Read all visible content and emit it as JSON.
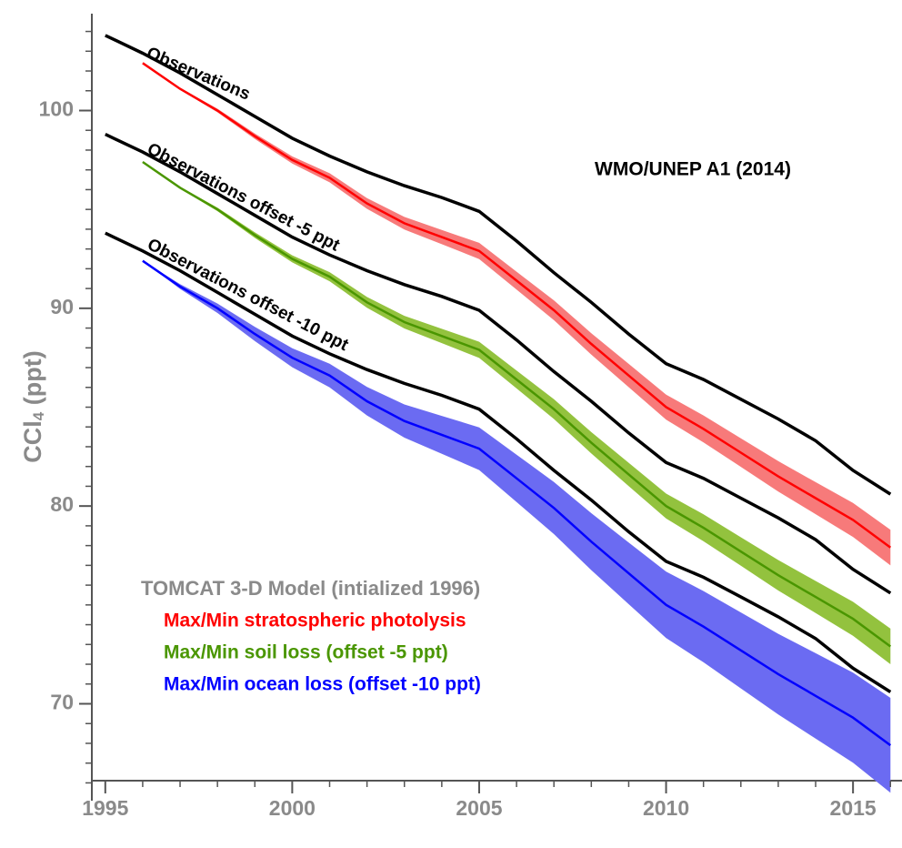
{
  "chart_data": {
    "type": "line",
    "annotation": "WMO/UNEP A1 (2014)",
    "y_label": {
      "main": "CCl",
      "sub": "4",
      "rest": " (ppt)"
    },
    "legend_title": "TOMCAT 3-D Model (intialized 1996)",
    "xlim": [
      1994.64,
      2016.31
    ],
    "ylim": [
      65.1,
      104.9
    ],
    "xticks": [
      1995,
      2000,
      2005,
      2010,
      2015
    ],
    "yticks": [
      70,
      80,
      90,
      100
    ],
    "xminorticks": [
      1996,
      1997,
      1998,
      1999,
      2001,
      2002,
      2003,
      2004,
      2006,
      2007,
      2008,
      2009,
      2011,
      2012,
      2013,
      2014,
      2016
    ],
    "yminorticks": [
      66,
      67,
      68,
      69,
      71,
      72,
      73,
      74,
      75,
      76,
      77,
      78,
      79,
      81,
      82,
      83,
      84,
      85,
      86,
      87,
      88,
      89,
      91,
      92,
      93,
      94,
      95,
      96,
      97,
      98,
      99,
      101,
      102,
      103,
      104
    ],
    "observations": [
      {
        "label": "Observations",
        "color": "#000000",
        "x": [
          1995,
          1996,
          1997,
          1998,
          1999,
          2000,
          2001,
          2002,
          2003,
          2004,
          2005,
          2006,
          2007,
          2008,
          2009,
          2010,
          2011,
          2012,
          2013,
          2014,
          2015,
          2016
        ],
        "values": [
          103.8,
          102.9,
          101.9,
          100.8,
          99.7,
          98.6,
          97.7,
          96.9,
          96.2,
          95.6,
          94.9,
          93.4,
          91.8,
          90.3,
          88.7,
          87.2,
          86.4,
          85.4,
          84.4,
          83.3,
          81.8,
          80.6
        ]
      },
      {
        "label": "Observations offset -5 ppt",
        "color": "#000000",
        "x": [
          1995,
          1996,
          1997,
          1998,
          1999,
          2000,
          2001,
          2002,
          2003,
          2004,
          2005,
          2006,
          2007,
          2008,
          2009,
          2010,
          2011,
          2012,
          2013,
          2014,
          2015,
          2016
        ],
        "values": [
          98.8,
          97.9,
          96.9,
          95.8,
          94.7,
          93.6,
          92.7,
          91.9,
          91.2,
          90.6,
          89.9,
          88.4,
          86.8,
          85.3,
          83.7,
          82.2,
          81.4,
          80.4,
          79.4,
          78.3,
          76.8,
          75.6
        ]
      },
      {
        "label": "Observations offset -10 ppt",
        "color": "#000000",
        "x": [
          1995,
          1996,
          1997,
          1998,
          1999,
          2000,
          2001,
          2002,
          2003,
          2004,
          2005,
          2006,
          2007,
          2008,
          2009,
          2010,
          2011,
          2012,
          2013,
          2014,
          2015,
          2016
        ],
        "values": [
          93.8,
          92.9,
          91.9,
          90.8,
          89.7,
          88.6,
          87.7,
          86.9,
          86.2,
          85.6,
          84.9,
          83.4,
          81.8,
          80.3,
          78.7,
          77.2,
          76.4,
          75.4,
          74.4,
          73.3,
          71.8,
          70.6
        ]
      }
    ],
    "series": [
      {
        "name": "Max/Min stratospheric photolysis",
        "color": "#ff0000",
        "band_color": "#f77a7a",
        "x": [
          1996,
          1997,
          1998,
          1999,
          2000,
          2001,
          2002,
          2003,
          2004,
          2005,
          2006,
          2007,
          2008,
          2009,
          2010,
          2011,
          2012,
          2013,
          2014,
          2015,
          2016
        ],
        "values": [
          102.4,
          101.1,
          100.0,
          98.7,
          97.5,
          96.6,
          95.3,
          94.3,
          93.6,
          92.9,
          91.4,
          89.9,
          88.2,
          86.6,
          85.0,
          83.9,
          82.7,
          81.5,
          80.4,
          79.3,
          77.9
        ],
        "spread": [
          0,
          0.05,
          0.09,
          0.14,
          0.18,
          0.23,
          0.27,
          0.32,
          0.36,
          0.41,
          0.45,
          0.5,
          0.54,
          0.59,
          0.63,
          0.68,
          0.72,
          0.77,
          0.81,
          0.86,
          0.9
        ]
      },
      {
        "name": "Max/Min soil loss (offset -5 ppt)",
        "color": "#4a9600",
        "band_color": "#93c23e",
        "x": [
          1996,
          1997,
          1998,
          1999,
          2000,
          2001,
          2002,
          2003,
          2004,
          2005,
          2006,
          2007,
          2008,
          2009,
          2010,
          2011,
          2012,
          2013,
          2014,
          2015,
          2016
        ],
        "values": [
          97.4,
          96.1,
          95.0,
          93.7,
          92.5,
          91.6,
          90.3,
          89.3,
          88.6,
          87.9,
          86.4,
          84.9,
          83.2,
          81.6,
          80.0,
          78.9,
          77.7,
          76.5,
          75.4,
          74.3,
          72.9
        ],
        "spread": [
          0,
          0.05,
          0.09,
          0.14,
          0.18,
          0.23,
          0.27,
          0.32,
          0.36,
          0.41,
          0.45,
          0.5,
          0.54,
          0.59,
          0.63,
          0.68,
          0.72,
          0.77,
          0.81,
          0.86,
          0.9
        ]
      },
      {
        "name": "Max/Min ocean loss (offset -10 ppt)",
        "color": "#0000ff",
        "band_color": "#6b6bf2",
        "x": [
          1996,
          1997,
          1998,
          1999,
          2000,
          2001,
          2002,
          2003,
          2004,
          2005,
          2006,
          2007,
          2008,
          2009,
          2010,
          2011,
          2012,
          2013,
          2014,
          2015,
          2016
        ],
        "values": [
          92.4,
          91.1,
          90.0,
          88.7,
          87.5,
          86.6,
          85.3,
          84.3,
          83.6,
          82.9,
          81.4,
          79.9,
          78.2,
          76.6,
          75.0,
          73.9,
          72.7,
          71.5,
          70.4,
          69.3,
          67.9
        ],
        "spread": [
          0,
          0.12,
          0.24,
          0.36,
          0.48,
          0.6,
          0.72,
          0.84,
          0.96,
          1.08,
          1.2,
          1.32,
          1.44,
          1.56,
          1.68,
          1.8,
          1.92,
          2.04,
          2.16,
          2.28,
          2.4
        ]
      }
    ]
  }
}
